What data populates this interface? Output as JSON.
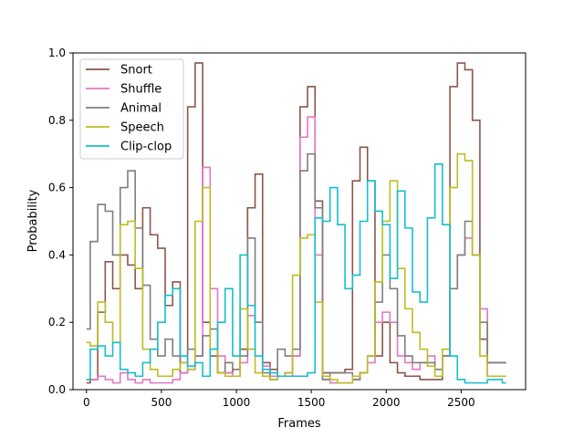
{
  "chart_data": {
    "type": "line",
    "drawstyle": "steps",
    "xlabel": "Frames",
    "ylabel": "Probability",
    "xlim": [
      -90,
      2930
    ],
    "ylim": [
      0,
      1
    ],
    "xticks": [
      0,
      500,
      1000,
      1500,
      2000,
      2500
    ],
    "yticks": [
      0.0,
      0.2,
      0.4,
      0.6,
      0.8,
      1.0
    ],
    "legend_position": "upper-left",
    "grid": false,
    "x": [
      0,
      50,
      100,
      150,
      200,
      250,
      300,
      350,
      400,
      450,
      500,
      550,
      600,
      650,
      700,
      750,
      800,
      850,
      900,
      950,
      1000,
      1050,
      1100,
      1150,
      1200,
      1250,
      1300,
      1350,
      1400,
      1450,
      1500,
      1550,
      1600,
      1650,
      1700,
      1750,
      1800,
      1850,
      1900,
      1950,
      2000,
      2050,
      2100,
      2150,
      2200,
      2250,
      2300,
      2350,
      2400,
      2450,
      2500,
      2550,
      2600,
      2650,
      2700,
      2750,
      2800
    ],
    "series": [
      {
        "name": "Snort",
        "color": "#8c564b",
        "values": [
          0.02,
          0.03,
          0.23,
          0.38,
          0.3,
          0.4,
          0.37,
          0.3,
          0.54,
          0.46,
          0.42,
          0.25,
          0.32,
          0.05,
          0.84,
          0.97,
          0.2,
          0.1,
          0.05,
          0.05,
          0.06,
          0.12,
          0.54,
          0.64,
          0.08,
          0.06,
          0.04,
          0.05,
          0.1,
          0.84,
          0.9,
          0.56,
          0.05,
          0.05,
          0.05,
          0.06,
          0.62,
          0.72,
          0.62,
          0.1,
          0.2,
          0.08,
          0.05,
          0.04,
          0.04,
          0.03,
          0.03,
          0.03,
          0.1,
          0.9,
          0.97,
          0.95,
          0.8,
          0.15,
          0.08,
          0.08,
          0.08
        ]
      },
      {
        "name": "Shuffle",
        "color": "#e377c2",
        "values": [
          0.03,
          0.03,
          0.04,
          0.03,
          0.02,
          0.05,
          0.03,
          0.02,
          0.03,
          0.02,
          0.02,
          0.02,
          0.03,
          0.05,
          0.06,
          0.1,
          0.66,
          0.3,
          0.1,
          0.05,
          0.04,
          0.08,
          0.22,
          0.2,
          0.07,
          0.04,
          0.04,
          0.04,
          0.1,
          0.75,
          0.81,
          0.4,
          0.03,
          0.02,
          0.02,
          0.02,
          0.03,
          0.05,
          0.08,
          0.2,
          0.23,
          0.2,
          0.1,
          0.08,
          0.06,
          0.08,
          0.1,
          0.06,
          0.1,
          0.3,
          0.4,
          0.45,
          0.4,
          0.24,
          0.04,
          0.04,
          0.04
        ]
      },
      {
        "name": "Animal",
        "color": "#7f7f7f",
        "values": [
          0.18,
          0.44,
          0.55,
          0.53,
          0.4,
          0.6,
          0.65,
          0.48,
          0.31,
          0.15,
          0.1,
          0.15,
          0.1,
          0.08,
          0.12,
          0.1,
          0.16,
          0.18,
          0.05,
          0.08,
          0.06,
          0.1,
          0.45,
          0.2,
          0.05,
          0.03,
          0.12,
          0.1,
          0.12,
          0.65,
          0.7,
          0.54,
          0.03,
          0.05,
          0.05,
          0.05,
          0.03,
          0.05,
          0.1,
          0.26,
          0.4,
          0.3,
          0.16,
          0.1,
          0.08,
          0.08,
          0.08,
          0.06,
          0.1,
          0.3,
          0.4,
          0.5,
          0.4,
          0.2,
          0.08,
          0.08,
          0.08
        ]
      },
      {
        "name": "Speech",
        "color": "#bcbd22",
        "values": [
          0.14,
          0.13,
          0.26,
          0.2,
          0.14,
          0.49,
          0.5,
          0.36,
          0.12,
          0.06,
          0.04,
          0.04,
          0.06,
          0.08,
          0.06,
          0.5,
          0.6,
          0.12,
          0.05,
          0.04,
          0.04,
          0.24,
          0.12,
          0.05,
          0.04,
          0.03,
          0.04,
          0.05,
          0.34,
          0.45,
          0.46,
          0.26,
          0.04,
          0.03,
          0.02,
          0.02,
          0.04,
          0.05,
          0.1,
          0.32,
          0.5,
          0.62,
          0.36,
          0.24,
          0.17,
          0.12,
          0.07,
          0.04,
          0.12,
          0.6,
          0.7,
          0.68,
          0.4,
          0.1,
          0.04,
          0.04,
          0.04
        ]
      },
      {
        "name": "Clip-clop",
        "color": "#17becf",
        "values": [
          0.03,
          0.12,
          0.13,
          0.1,
          0.14,
          0.06,
          0.05,
          0.04,
          0.08,
          0.12,
          0.2,
          0.28,
          0.3,
          0.1,
          0.07,
          0.08,
          0.04,
          0.12,
          0.2,
          0.3,
          0.1,
          0.4,
          0.25,
          0.1,
          0.06,
          0.05,
          0.04,
          0.04,
          0.04,
          0.04,
          0.05,
          0.51,
          0.5,
          0.6,
          0.49,
          0.3,
          0.34,
          0.5,
          0.62,
          0.53,
          0.49,
          0.33,
          0.59,
          0.48,
          0.29,
          0.26,
          0.51,
          0.67,
          0.49,
          0.1,
          0.03,
          0.02,
          0.02,
          0.02,
          0.03,
          0.03,
          0.02
        ]
      }
    ]
  }
}
